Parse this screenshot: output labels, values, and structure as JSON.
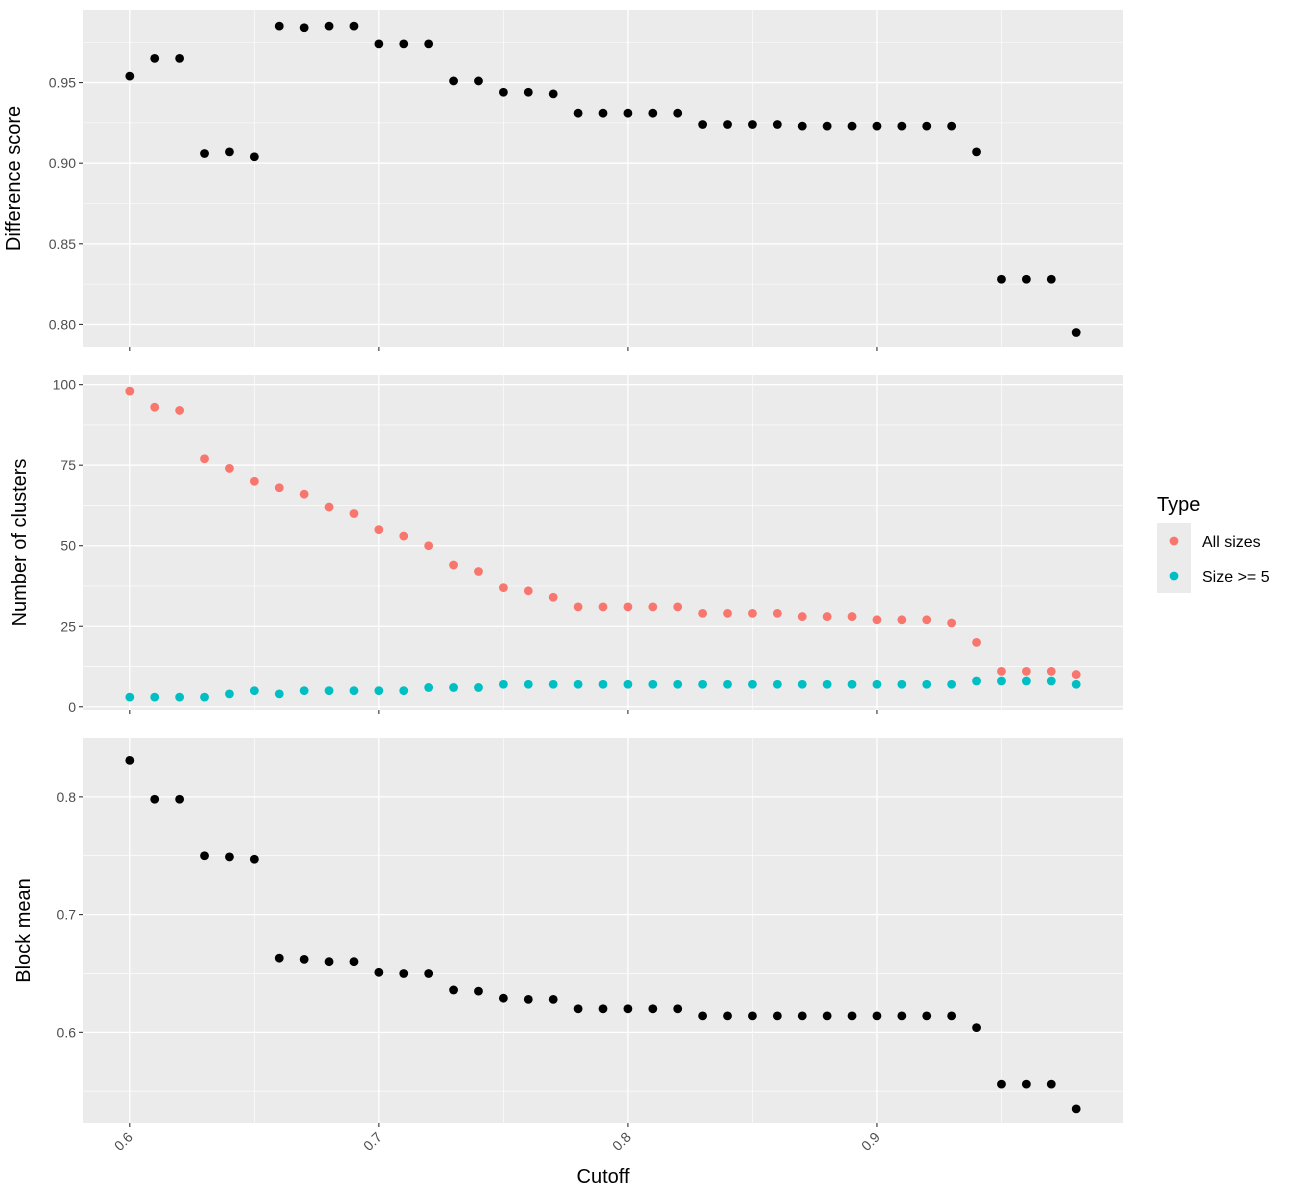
{
  "chart_data": {
    "type": "scatter",
    "xlabel": "Cutoff",
    "x_ticks": [
      0.6,
      0.7,
      0.8,
      0.9
    ],
    "x_tick_labels": [
      "0.6",
      "0.7",
      "0.8",
      "0.9"
    ],
    "xlim": [
      0.5812,
      0.9988
    ],
    "x": [
      0.6,
      0.61,
      0.62,
      0.63,
      0.64,
      0.65,
      0.66,
      0.67,
      0.68,
      0.69,
      0.7,
      0.71,
      0.72,
      0.73,
      0.74,
      0.75,
      0.76,
      0.77,
      0.78,
      0.79,
      0.8,
      0.81,
      0.82,
      0.83,
      0.84,
      0.85,
      0.86,
      0.87,
      0.88,
      0.89,
      0.9,
      0.91,
      0.92,
      0.93,
      0.94,
      0.95,
      0.96,
      0.97,
      0.98
    ],
    "grid": true,
    "legend": {
      "title": "Type",
      "position": "right"
    },
    "panels": [
      {
        "ylabel": "Difference score",
        "ylim": [
          0.786,
          0.995
        ],
        "y_ticks": [
          0.8,
          0.85,
          0.9,
          0.95
        ],
        "y_tick_labels": [
          "0.80",
          "0.85",
          "0.90",
          "0.95"
        ],
        "series": [
          {
            "color": "#000000",
            "values": [
              0.954,
              0.965,
              0.965,
              0.906,
              0.907,
              0.904,
              0.985,
              0.984,
              0.985,
              0.985,
              0.974,
              0.974,
              0.974,
              0.951,
              0.951,
              0.944,
              0.944,
              0.943,
              0.931,
              0.931,
              0.931,
              0.931,
              0.931,
              0.924,
              0.924,
              0.924,
              0.924,
              0.923,
              0.923,
              0.923,
              0.923,
              0.923,
              0.923,
              0.923,
              0.907,
              0.828,
              0.828,
              0.828,
              0.795
            ]
          }
        ]
      },
      {
        "ylabel": "Number of clusters",
        "ylim": [
          -1,
          103
        ],
        "y_ticks": [
          0,
          25,
          50,
          75,
          100
        ],
        "y_tick_labels": [
          "0",
          "25",
          "50",
          "75",
          "100"
        ],
        "series": [
          {
            "name": "All sizes",
            "color": "#F8766D",
            "values": [
              98,
              93,
              92,
              77,
              74,
              70,
              68,
              66,
              62,
              60,
              55,
              53,
              50,
              44,
              42,
              37,
              36,
              34,
              31,
              31,
              31,
              31,
              31,
              29,
              29,
              29,
              29,
              28,
              28,
              28,
              27,
              27,
              27,
              26,
              20,
              11,
              11,
              11,
              10
            ]
          },
          {
            "name": "Size >= 5",
            "color": "#00BFC4",
            "values": [
              3,
              3,
              3,
              3,
              4,
              5,
              4,
              5,
              5,
              5,
              5,
              5,
              6,
              6,
              6,
              7,
              7,
              7,
              7,
              7,
              7,
              7,
              7,
              7,
              7,
              7,
              7,
              7,
              7,
              7,
              7,
              7,
              7,
              7,
              8,
              8,
              8,
              8,
              7
            ]
          }
        ]
      },
      {
        "ylabel": "Block mean",
        "ylim": [
          0.523,
          0.85
        ],
        "y_ticks": [
          0.6,
          0.7,
          0.8
        ],
        "y_tick_labels": [
          "0.6",
          "0.7",
          "0.8"
        ],
        "series": [
          {
            "color": "#000000",
            "values": [
              0.831,
              0.798,
              0.798,
              0.75,
              0.749,
              0.747,
              0.663,
              0.662,
              0.66,
              0.66,
              0.651,
              0.65,
              0.65,
              0.636,
              0.635,
              0.629,
              0.628,
              0.628,
              0.62,
              0.62,
              0.62,
              0.62,
              0.62,
              0.614,
              0.614,
              0.614,
              0.614,
              0.614,
              0.614,
              0.614,
              0.614,
              0.614,
              0.614,
              0.614,
              0.604,
              0.556,
              0.556,
              0.556,
              0.535
            ]
          }
        ]
      }
    ]
  }
}
